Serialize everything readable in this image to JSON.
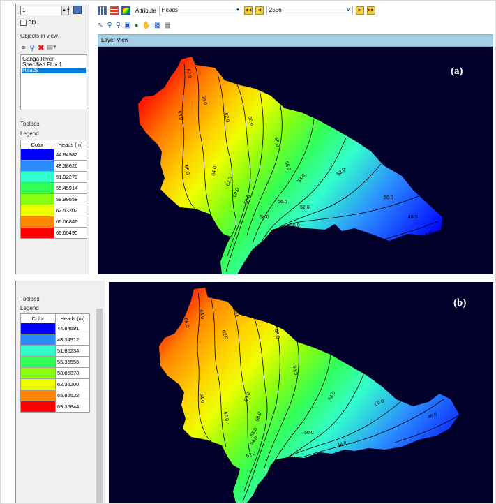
{
  "panel_a": {
    "layer_spin_value": "1",
    "three_d_label": "3D",
    "objects_header": "Objects in view",
    "objects": [
      {
        "label": "Ganga River",
        "selected": false
      },
      {
        "label": "Specified Flux 1",
        "selected": false
      },
      {
        "label": "Heads",
        "selected": true
      }
    ],
    "toolbox_label": "Toolbox",
    "legend_label": "Legend",
    "legend_color_header": "Color",
    "legend_value_header": "Heads (m)",
    "legend": [
      {
        "color": "#0000ff",
        "value": "44.84982"
      },
      {
        "color": "#2b8cff",
        "value": "48.38626"
      },
      {
        "color": "#33ffcc",
        "value": "51.92270"
      },
      {
        "color": "#33ff55",
        "value": "55.45914"
      },
      {
        "color": "#88ff11",
        "value": "58.99558"
      },
      {
        "color": "#eeff00",
        "value": "62.53202"
      },
      {
        "color": "#ff8800",
        "value": "66.06846"
      },
      {
        "color": "#ff0000",
        "value": "69.60490"
      }
    ],
    "attribute_label": "Attribute",
    "attribute_value": "Heads",
    "time_step": "2556",
    "layer_view_title": "Layer View",
    "panel_tag": "(a)",
    "contour_labels": [
      "62.0",
      "64.0",
      "68.0",
      "66.0",
      "62.0",
      "60.0",
      "58.0",
      "56.0",
      "54.0",
      "52.0",
      "50.0",
      "48.0",
      "48.0",
      "56.0",
      "54.0",
      "52.0",
      "50.0",
      "58.0",
      "60.0",
      "62.0",
      "64.0",
      "66.0"
    ]
  },
  "panel_b": {
    "toolbox_label": "Toolbox",
    "legend_label": "Legend",
    "legend_color_header": "Color",
    "legend_value_header": "Heads (m)",
    "legend": [
      {
        "color": "#0000ff",
        "value": "44.84591"
      },
      {
        "color": "#2b8cff",
        "value": "48.34912"
      },
      {
        "color": "#33ffcc",
        "value": "51.85234"
      },
      {
        "color": "#33ff55",
        "value": "55.35556"
      },
      {
        "color": "#88ff11",
        "value": "58.85878"
      },
      {
        "color": "#eeff00",
        "value": "62.36200"
      },
      {
        "color": "#ff8800",
        "value": "65.86522"
      },
      {
        "color": "#ff0000",
        "value": "69.36844"
      }
    ],
    "panel_tag": "(b)",
    "contour_labels": [
      "66.0",
      "64.0",
      "60.0",
      "62.0",
      "58.0",
      "56.0",
      "52.0",
      "50.0",
      "48.0",
      "64.0",
      "62.0",
      "60.0",
      "58.0",
      "56.0",
      "54.0",
      "52.0",
      "50.0",
      "48.0"
    ]
  }
}
